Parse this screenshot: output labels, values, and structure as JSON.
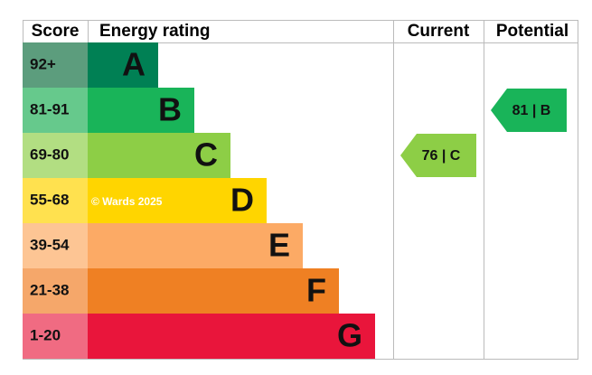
{
  "header": {
    "score": "Score",
    "rating": "Energy rating",
    "current": "Current",
    "potential": "Potential"
  },
  "bands": [
    {
      "score": "92+",
      "letter": "A",
      "color": "#008054",
      "score_color": "#5c9d7d"
    },
    {
      "score": "81-91",
      "letter": "B",
      "color": "#19b459",
      "score_color": "#66c98c"
    },
    {
      "score": "69-80",
      "letter": "C",
      "color": "#8dce46",
      "score_color": "#b2de82"
    },
    {
      "score": "55-68",
      "letter": "D",
      "color": "#ffd500",
      "score_color": "#ffe14f"
    },
    {
      "score": "39-54",
      "letter": "E",
      "color": "#fcaa65",
      "score_color": "#fdc594"
    },
    {
      "score": "21-38",
      "letter": "F",
      "color": "#ef8023",
      "score_color": "#f5a76a"
    },
    {
      "score": "1-20",
      "letter": "G",
      "color": "#e9153b",
      "score_color": "#f06b82"
    }
  ],
  "watermark": "© Wards 2025",
  "current": {
    "label": "76 | C",
    "color": "#8dce46"
  },
  "potential": {
    "label": "81 | B",
    "color": "#19b459"
  }
}
